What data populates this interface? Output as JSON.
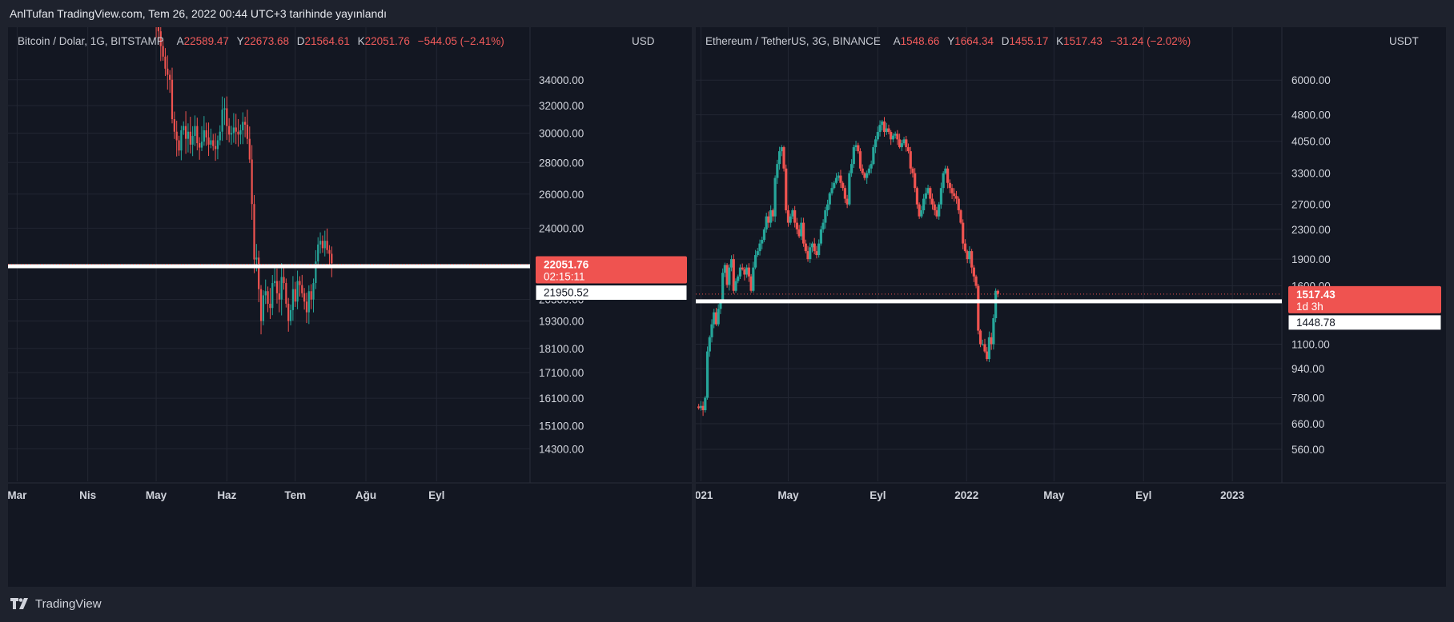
{
  "header": {
    "title": "AnlTufan TradingView.com, Tem 26, 2022 00:44 UTC+3 tarihinde yayınlandı"
  },
  "footer": {
    "brand": "TradingView"
  },
  "colors": {
    "up": "#26a69a",
    "down": "#ef5350",
    "background": "#131722",
    "frame": "#1e222d",
    "grid": "#232733",
    "text": "#d1d4dc",
    "level": "#ffffff"
  },
  "icons": {
    "logo": "tradingview-logo-icon"
  },
  "chart_data": [
    {
      "type": "candlestick",
      "symbol": "Bitcoin / Dolar, 1G, BITSTAMP",
      "ohlc": {
        "a_label": "A",
        "a": "22589.47",
        "y_label": "Y",
        "y": "22673.68",
        "d_label": "D",
        "d": "21564.61",
        "k_label": "K",
        "k": "22051.76",
        "change": "−544.05 (−2.41%)"
      },
      "currency": "USD",
      "y_scale": "log",
      "y_ticks": [
        "34000.00",
        "32000.00",
        "30000.00",
        "28000.00",
        "26000.00",
        "24000.00",
        "20300.00",
        "19300.00",
        "18100.00",
        "17100.00",
        "16100.00",
        "15100.00",
        "14300.00"
      ],
      "y_tick_values": [
        34000,
        32000,
        30000,
        28000,
        26000,
        24000,
        20300,
        19300,
        18100,
        17100,
        16100,
        15100,
        14300
      ],
      "ylim": [
        13500,
        36500
      ],
      "x_range": [
        "2022-02-25",
        "2022-10-12"
      ],
      "x_ticks": [
        {
          "label": "Mar",
          "date": "2022-03-01"
        },
        {
          "label": "Nis",
          "date": "2022-04-01"
        },
        {
          "label": "May",
          "date": "2022-05-01"
        },
        {
          "label": "Haz",
          "date": "2022-06-01"
        },
        {
          "label": "Tem",
          "date": "2022-07-01"
        },
        {
          "label": "Ağu",
          "date": "2022-08-01"
        },
        {
          "label": "Eyl",
          "date": "2022-09-01"
        }
      ],
      "start_date": "2022-05-01",
      "candle_days": 1,
      "closes": [
        38500,
        38100,
        36800,
        35900,
        34900,
        34400,
        34000,
        31000,
        30100,
        29500,
        28800,
        30200,
        30500,
        29600,
        30100,
        29200,
        29800,
        30500,
        29300,
        29000,
        29400,
        30200,
        29700,
        29200,
        29500,
        29100,
        28900,
        29500,
        30100,
        31700,
        31800,
        30500,
        29900,
        30000,
        30400,
        30100,
        29900,
        30200,
        30800,
        30600,
        29600,
        28200,
        25400,
        22300,
        22400,
        20800,
        19300,
        20500,
        20700,
        20100,
        19900,
        21100,
        21200,
        20600,
        20300,
        21400,
        21100,
        20100,
        19300,
        19800,
        20800,
        20200,
        21200,
        21000,
        20600,
        20200,
        19700,
        20700,
        20300,
        21100,
        22200,
        23100,
        23300,
        22900,
        23300,
        22800,
        22600,
        22100
      ],
      "level": 21950.52,
      "level_label": "21950.52",
      "price_tag": {
        "price": 22051.76,
        "price_label": "22051.76",
        "timer": "02:15:11"
      }
    },
    {
      "type": "candlestick",
      "symbol": "Ethereum / TetherUS, 3G, BINANCE",
      "ohlc": {
        "a_label": "A",
        "a": "1548.66",
        "y_label": "Y",
        "y": "1664.34",
        "d_label": "D",
        "d": "1455.17",
        "k_label": "K",
        "k": "1517.43",
        "change": "−31.24 (−2.02%)"
      },
      "currency": "USDT",
      "y_scale": "log",
      "y_ticks": [
        "6000.00",
        "4800.00",
        "4050.00",
        "3300.00",
        "2700.00",
        "2300.00",
        "1900.00",
        "1600.00",
        "1100.00",
        "940.00",
        "780.00",
        "660.00",
        "560.00"
      ],
      "y_tick_values": [
        6000,
        4800,
        4050,
        3300,
        2700,
        2300,
        1900,
        1600,
        1100,
        940,
        780,
        660,
        560
      ],
      "ylim": [
        480,
        7300
      ],
      "x_range": [
        "2020-12-25",
        "2023-03-10"
      ],
      "x_ticks": [
        {
          "label": "2021",
          "date": "2021-01-01"
        },
        {
          "label": "May",
          "date": "2021-05-01"
        },
        {
          "label": "Eyl",
          "date": "2021-09-01"
        },
        {
          "label": "2022",
          "date": "2022-01-01"
        },
        {
          "label": "May",
          "date": "2022-05-01"
        },
        {
          "label": "Eyl",
          "date": "2022-09-01"
        },
        {
          "label": "2023",
          "date": "2023-01-01"
        }
      ],
      "start_date": "2020-12-29",
      "candle_days": 3,
      "closes": [
        730,
        740,
        720,
        780,
        1050,
        1150,
        1250,
        1350,
        1250,
        1380,
        1450,
        1740,
        1830,
        1610,
        1800,
        1900,
        1550,
        1650,
        1700,
        1800,
        1780,
        1720,
        1800,
        1700,
        1550,
        1800,
        1950,
        2000,
        2100,
        2150,
        2300,
        2500,
        2400,
        2600,
        2500,
        3200,
        3500,
        3800,
        3900,
        3400,
        2600,
        2400,
        2500,
        2600,
        2400,
        2300,
        2200,
        2400,
        2100,
        2000,
        1900,
        2050,
        2100,
        2000,
        1950,
        2100,
        2300,
        2400,
        2600,
        2700,
        2900,
        3000,
        3100,
        3200,
        3250,
        3100,
        3000,
        2800,
        2700,
        3300,
        3500,
        3900,
        3950,
        3800,
        3400,
        3300,
        3200,
        3300,
        3400,
        3500,
        3900,
        4100,
        4300,
        4500,
        4600,
        4300,
        4400,
        4300,
        4100,
        4200,
        4250,
        4100,
        3900,
        4000,
        4100,
        3900,
        3800,
        3400,
        3300,
        3000,
        2700,
        2500,
        2600,
        2800,
        2900,
        3000,
        2800,
        2700,
        2600,
        2500,
        2700,
        3000,
        3300,
        3400,
        3100,
        3000,
        2900,
        2850,
        2800,
        2600,
        2400,
        2100,
        2000,
        1900,
        2000,
        1800,
        1700,
        1600,
        1200,
        1100,
        1100,
        1050,
        1000,
        1150,
        1100,
        1300,
        1550,
        1520
      ],
      "level": 1448.78,
      "level_label": "1448.78",
      "price_tag": {
        "price": 1517.43,
        "price_label": "1517.43",
        "timer": "1d 3h"
      }
    }
  ]
}
